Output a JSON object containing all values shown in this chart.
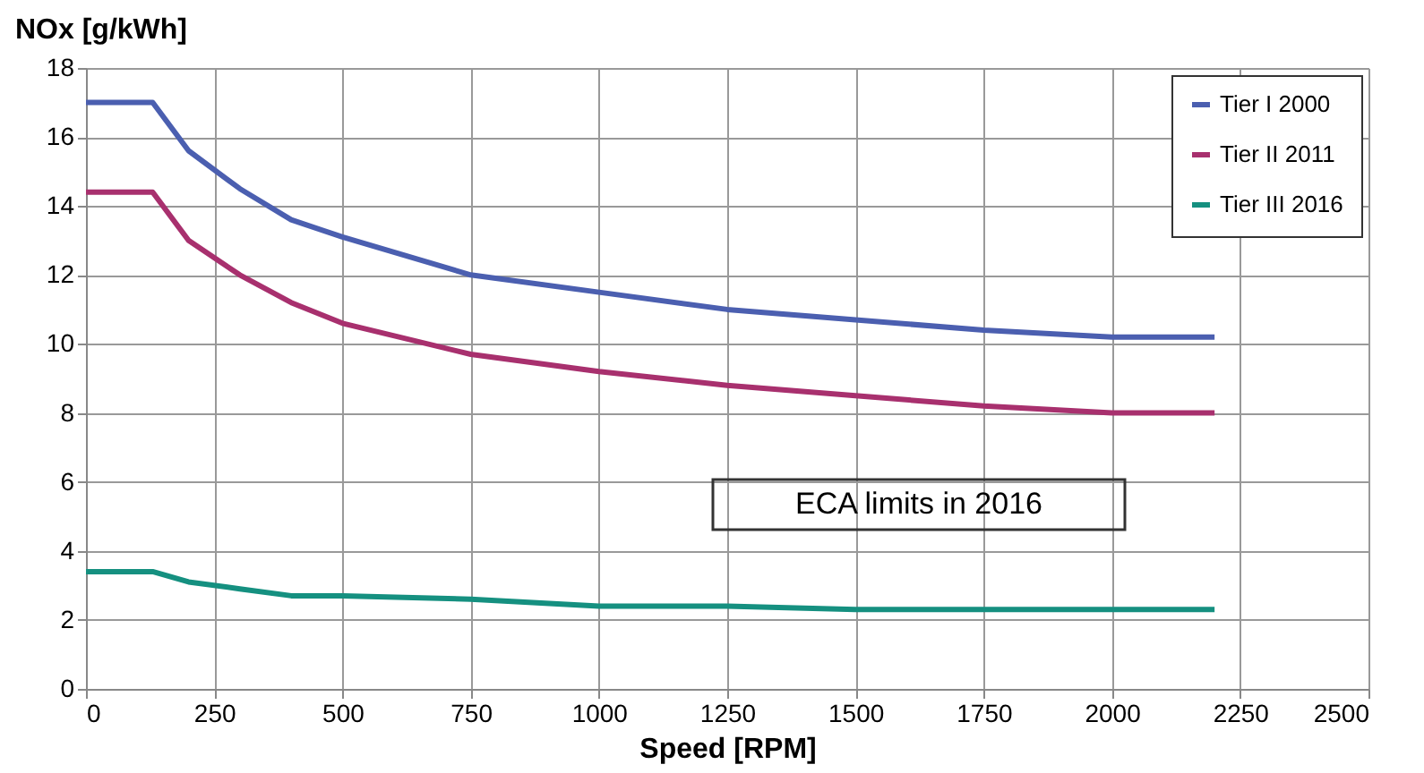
{
  "chart_data": {
    "type": "line",
    "ylabel": "NOx [g/kWh]",
    "xlabel": "Speed [RPM]",
    "xlim": [
      0,
      2500
    ],
    "xticks": [
      0,
      250,
      500,
      750,
      1000,
      1250,
      1500,
      1750,
      2000,
      2250,
      2500
    ],
    "ylim": [
      0,
      18
    ],
    "yticks": [
      0,
      2,
      4,
      6,
      8,
      10,
      12,
      14,
      16,
      18
    ],
    "grid": true,
    "legend": "top right",
    "marker": "none",
    "line_style": "solid",
    "annotations": [
      "ECA limits in 2016"
    ],
    "series": [
      {
        "name": "Tier I 2000",
        "color": "#4b5fb0",
        "x": [
          0,
          130,
          200,
          300,
          400,
          500,
          750,
          1000,
          1250,
          1500,
          1750,
          2000,
          2200
        ],
        "values": [
          17.0,
          17.0,
          15.6,
          14.5,
          13.6,
          13.1,
          12.0,
          11.5,
          11.0,
          10.7,
          10.4,
          10.2,
          10.2
        ]
      },
      {
        "name": "Tier II 2011",
        "color": "#a8306e",
        "x": [
          0,
          130,
          200,
          300,
          400,
          500,
          750,
          1000,
          1250,
          1500,
          1750,
          2000,
          2200
        ],
        "values": [
          14.4,
          14.4,
          13.0,
          12.0,
          11.2,
          10.6,
          9.7,
          9.2,
          8.8,
          8.5,
          8.2,
          8.0,
          8.0
        ]
      },
      {
        "name": "Tier III 2016",
        "color": "#159080",
        "x": [
          0,
          130,
          200,
          300,
          400,
          500,
          750,
          1000,
          1250,
          1500,
          1750,
          2000,
          2200
        ],
        "values": [
          3.4,
          3.4,
          3.1,
          2.9,
          2.7,
          2.7,
          2.6,
          2.4,
          2.4,
          2.3,
          2.3,
          2.3,
          2.3
        ]
      }
    ]
  }
}
